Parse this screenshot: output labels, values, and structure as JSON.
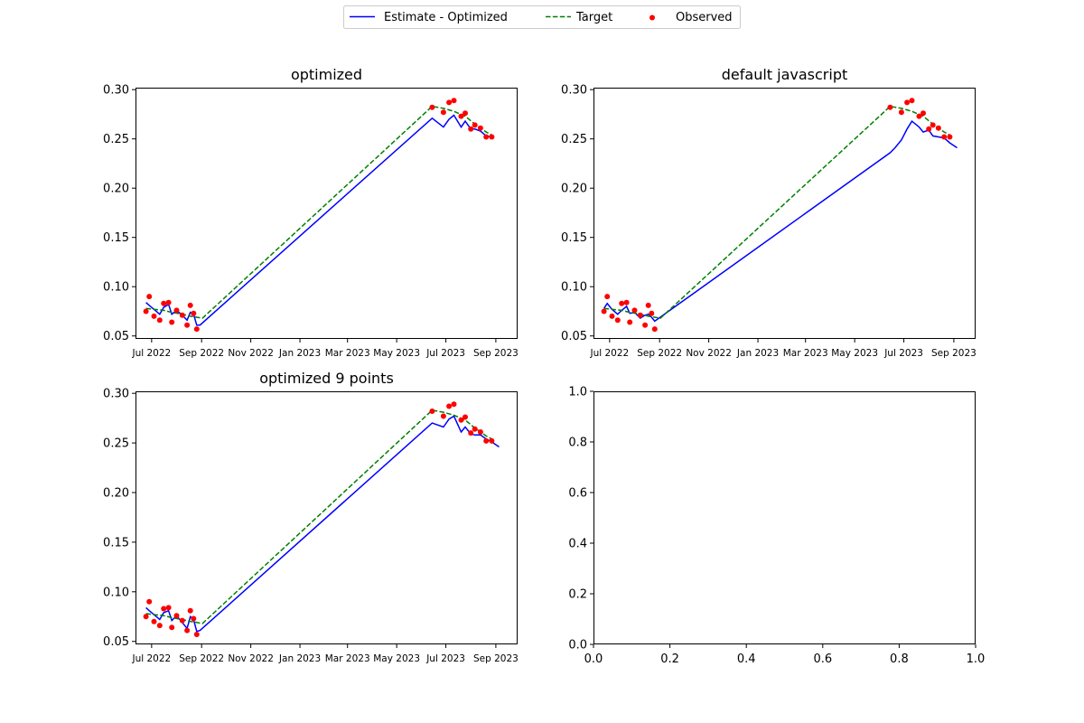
{
  "legend": {
    "position": "top-center",
    "entries": [
      {
        "label": "Estimate - Optimized",
        "color": "#0000ff",
        "style": "solid-line"
      },
      {
        "label": "Target",
        "color": "#008000",
        "style": "dashed-line"
      },
      {
        "label": "Observed",
        "color": "#ff0000",
        "style": "marker"
      }
    ]
  },
  "chart_data": [
    {
      "type": "line",
      "title": "optimized",
      "x_axis": "date",
      "xlabel": "",
      "ylabel": "",
      "xticks": [
        "Jul 2022",
        "Sep 2022",
        "Nov 2022",
        "Jan 2023",
        "Mar 2023",
        "May 2023",
        "Jul 2023",
        "Sep 2023"
      ],
      "yticks": [
        "0.05",
        "0.10",
        "0.15",
        "0.20",
        "0.25",
        "0.30"
      ],
      "ylim": [
        0.047,
        0.302
      ],
      "xlim": [
        "2022-06-11",
        "2023-09-28"
      ],
      "grid": false,
      "series": [
        {
          "name": "Estimate - Optimized",
          "style": "line",
          "color": "#0000ff",
          "x": [
            "2022-06-24",
            "2022-06-28",
            "2022-07-04",
            "2022-07-11",
            "2022-07-16",
            "2022-07-22",
            "2022-07-26",
            "2022-08-01",
            "2022-08-08",
            "2022-08-14",
            "2022-08-18",
            "2022-08-22",
            "2022-08-26",
            "2022-08-30",
            "2023-06-14",
            "2023-06-28",
            "2023-07-05",
            "2023-07-11",
            "2023-07-20",
            "2023-07-25",
            "2023-08-01",
            "2023-08-06",
            "2023-08-13",
            "2023-08-20",
            "2023-08-27"
          ],
          "values": [
            0.084,
            0.081,
            0.077,
            0.072,
            0.079,
            0.082,
            0.072,
            0.076,
            0.071,
            0.066,
            0.074,
            0.072,
            0.061,
            0.061,
            0.271,
            0.262,
            0.27,
            0.274,
            0.262,
            0.268,
            0.26,
            0.26,
            0.258,
            0.253,
            0.252
          ]
        },
        {
          "name": "Target",
          "style": "dashed",
          "color": "#008000",
          "x": [
            "2022-06-24",
            "2022-07-04",
            "2022-07-16",
            "2022-07-26",
            "2022-08-08",
            "2022-08-18",
            "2022-08-26",
            "2022-09-02",
            "2023-06-14",
            "2023-06-28",
            "2023-07-11",
            "2023-07-25",
            "2023-08-06",
            "2023-08-20",
            "2023-08-27"
          ],
          "values": [
            0.078,
            0.077,
            0.076,
            0.074,
            0.072,
            0.07,
            0.069,
            0.068,
            0.283,
            0.281,
            0.278,
            0.273,
            0.265,
            0.257,
            0.254
          ]
        },
        {
          "name": "Observed",
          "style": "scatter",
          "color": "#ff0000",
          "x": [
            "2022-06-24",
            "2022-06-28",
            "2022-07-04",
            "2022-07-11",
            "2022-07-16",
            "2022-07-22",
            "2022-07-26",
            "2022-08-01",
            "2022-08-08",
            "2022-08-14",
            "2022-08-18",
            "2022-08-22",
            "2022-08-26",
            "2023-06-14",
            "2023-06-28",
            "2023-07-05",
            "2023-07-11",
            "2023-07-20",
            "2023-07-25",
            "2023-08-01",
            "2023-08-06",
            "2023-08-13",
            "2023-08-20",
            "2023-08-27"
          ],
          "values": [
            0.075,
            0.09,
            0.07,
            0.066,
            0.083,
            0.084,
            0.064,
            0.076,
            0.071,
            0.061,
            0.081,
            0.073,
            0.057,
            0.282,
            0.277,
            0.287,
            0.289,
            0.273,
            0.276,
            0.26,
            0.264,
            0.261,
            0.252,
            0.252
          ]
        }
      ]
    },
    {
      "type": "line",
      "title": "default javascript",
      "x_axis": "date",
      "xlabel": "",
      "ylabel": "",
      "xticks": [
        "Jul 2022",
        "Sep 2022",
        "Nov 2022",
        "Jan 2023",
        "Mar 2023",
        "May 2023",
        "Jul 2023",
        "Sep 2023"
      ],
      "yticks": [
        "0.05",
        "0.10",
        "0.15",
        "0.20",
        "0.25",
        "0.30"
      ],
      "ylim": [
        0.047,
        0.302
      ],
      "xlim": [
        "2022-06-11",
        "2023-09-28"
      ],
      "grid": false,
      "series": [
        {
          "name": "Estimate - Optimized",
          "style": "line",
          "color": "#0000ff",
          "x": [
            "2022-06-24",
            "2022-06-28",
            "2022-07-04",
            "2022-07-11",
            "2022-07-16",
            "2022-07-22",
            "2022-07-26",
            "2022-08-01",
            "2022-08-08",
            "2022-08-14",
            "2022-08-18",
            "2022-08-22",
            "2022-08-26",
            "2023-06-14",
            "2023-06-20",
            "2023-06-28",
            "2023-07-05",
            "2023-07-11",
            "2023-07-20",
            "2023-07-25",
            "2023-08-01",
            "2023-08-06",
            "2023-08-13",
            "2023-08-20",
            "2023-08-27",
            "2023-09-05"
          ],
          "values": [
            0.078,
            0.083,
            0.077,
            0.072,
            0.076,
            0.08,
            0.073,
            0.074,
            0.068,
            0.071,
            0.072,
            0.069,
            0.065,
            0.236,
            0.241,
            0.249,
            0.26,
            0.268,
            0.262,
            0.257,
            0.259,
            0.253,
            0.252,
            0.251,
            0.246,
            0.241
          ]
        },
        {
          "name": "Target",
          "style": "dashed",
          "color": "#008000",
          "x": [
            "2022-06-24",
            "2022-07-04",
            "2022-07-16",
            "2022-07-26",
            "2022-08-08",
            "2022-08-18",
            "2022-08-26",
            "2022-09-02",
            "2023-06-14",
            "2023-06-28",
            "2023-07-11",
            "2023-07-25",
            "2023-08-06",
            "2023-08-20",
            "2023-08-27"
          ],
          "values": [
            0.078,
            0.077,
            0.076,
            0.074,
            0.072,
            0.07,
            0.069,
            0.068,
            0.283,
            0.281,
            0.278,
            0.273,
            0.265,
            0.257,
            0.254
          ]
        },
        {
          "name": "Observed",
          "style": "scatter",
          "color": "#ff0000",
          "x": [
            "2022-06-24",
            "2022-06-28",
            "2022-07-04",
            "2022-07-11",
            "2022-07-16",
            "2022-07-22",
            "2022-07-26",
            "2022-08-01",
            "2022-08-08",
            "2022-08-14",
            "2022-08-18",
            "2022-08-22",
            "2022-08-26",
            "2023-06-14",
            "2023-06-28",
            "2023-07-05",
            "2023-07-11",
            "2023-07-20",
            "2023-07-25",
            "2023-08-01",
            "2023-08-06",
            "2023-08-13",
            "2023-08-20",
            "2023-08-27"
          ],
          "values": [
            0.075,
            0.09,
            0.07,
            0.066,
            0.083,
            0.084,
            0.064,
            0.076,
            0.071,
            0.061,
            0.081,
            0.073,
            0.057,
            0.282,
            0.277,
            0.287,
            0.289,
            0.273,
            0.276,
            0.26,
            0.264,
            0.261,
            0.252,
            0.252
          ]
        }
      ]
    },
    {
      "type": "line",
      "title": "optimized 9 points",
      "x_axis": "date",
      "xlabel": "",
      "ylabel": "",
      "xticks": [
        "Jul 2022",
        "Sep 2022",
        "Nov 2022",
        "Jan 2023",
        "Mar 2023",
        "May 2023",
        "Jul 2023",
        "Sep 2023"
      ],
      "yticks": [
        "0.05",
        "0.10",
        "0.15",
        "0.20",
        "0.25",
        "0.30"
      ],
      "ylim": [
        0.047,
        0.302
      ],
      "xlim": [
        "2022-06-11",
        "2023-09-28"
      ],
      "grid": false,
      "series": [
        {
          "name": "Estimate - Optimized",
          "style": "line",
          "color": "#0000ff",
          "x": [
            "2022-06-24",
            "2022-06-28",
            "2022-07-04",
            "2022-07-11",
            "2022-07-16",
            "2022-07-22",
            "2022-07-26",
            "2022-08-01",
            "2022-08-08",
            "2022-08-14",
            "2022-08-18",
            "2022-08-22",
            "2022-08-26",
            "2022-08-30",
            "2023-06-14",
            "2023-06-28",
            "2023-07-05",
            "2023-07-11",
            "2023-07-20",
            "2023-07-25",
            "2023-08-01",
            "2023-08-06",
            "2023-08-13",
            "2023-08-20",
            "2023-08-27",
            "2023-09-05"
          ],
          "values": [
            0.084,
            0.081,
            0.077,
            0.072,
            0.079,
            0.081,
            0.071,
            0.076,
            0.069,
            0.063,
            0.075,
            0.072,
            0.06,
            0.061,
            0.27,
            0.266,
            0.274,
            0.277,
            0.261,
            0.266,
            0.259,
            0.258,
            0.258,
            0.254,
            0.251,
            0.246
          ]
        },
        {
          "name": "Target",
          "style": "dashed",
          "color": "#008000",
          "x": [
            "2022-06-24",
            "2022-07-04",
            "2022-07-16",
            "2022-07-26",
            "2022-08-08",
            "2022-08-18",
            "2022-08-26",
            "2022-09-02",
            "2023-06-14",
            "2023-06-28",
            "2023-07-11",
            "2023-07-25",
            "2023-08-06",
            "2023-08-20",
            "2023-08-27"
          ],
          "values": [
            0.078,
            0.077,
            0.076,
            0.074,
            0.072,
            0.07,
            0.069,
            0.068,
            0.283,
            0.281,
            0.278,
            0.273,
            0.265,
            0.257,
            0.254
          ]
        },
        {
          "name": "Observed",
          "style": "scatter",
          "color": "#ff0000",
          "x": [
            "2022-06-24",
            "2022-06-28",
            "2022-07-04",
            "2022-07-11",
            "2022-07-16",
            "2022-07-22",
            "2022-07-26",
            "2022-08-01",
            "2022-08-08",
            "2022-08-14",
            "2022-08-18",
            "2022-08-22",
            "2022-08-26",
            "2023-06-14",
            "2023-06-28",
            "2023-07-05",
            "2023-07-11",
            "2023-07-20",
            "2023-07-25",
            "2023-08-01",
            "2023-08-06",
            "2023-08-13",
            "2023-08-20",
            "2023-08-27"
          ],
          "values": [
            0.075,
            0.09,
            0.07,
            0.066,
            0.083,
            0.084,
            0.064,
            0.076,
            0.071,
            0.061,
            0.081,
            0.073,
            0.057,
            0.282,
            0.277,
            0.287,
            0.289,
            0.273,
            0.276,
            0.26,
            0.264,
            0.261,
            0.252,
            0.252
          ]
        }
      ]
    },
    {
      "type": "line",
      "title": "",
      "x_axis": "linear",
      "xlabel": "",
      "ylabel": "",
      "xticks": [
        "0.0",
        "0.2",
        "0.4",
        "0.6",
        "0.8",
        "1.0"
      ],
      "yticks": [
        "0.0",
        "0.2",
        "0.4",
        "0.6",
        "0.8",
        "1.0"
      ],
      "xlim": [
        0,
        1
      ],
      "ylim": [
        0,
        1
      ],
      "grid": false,
      "series": []
    }
  ]
}
